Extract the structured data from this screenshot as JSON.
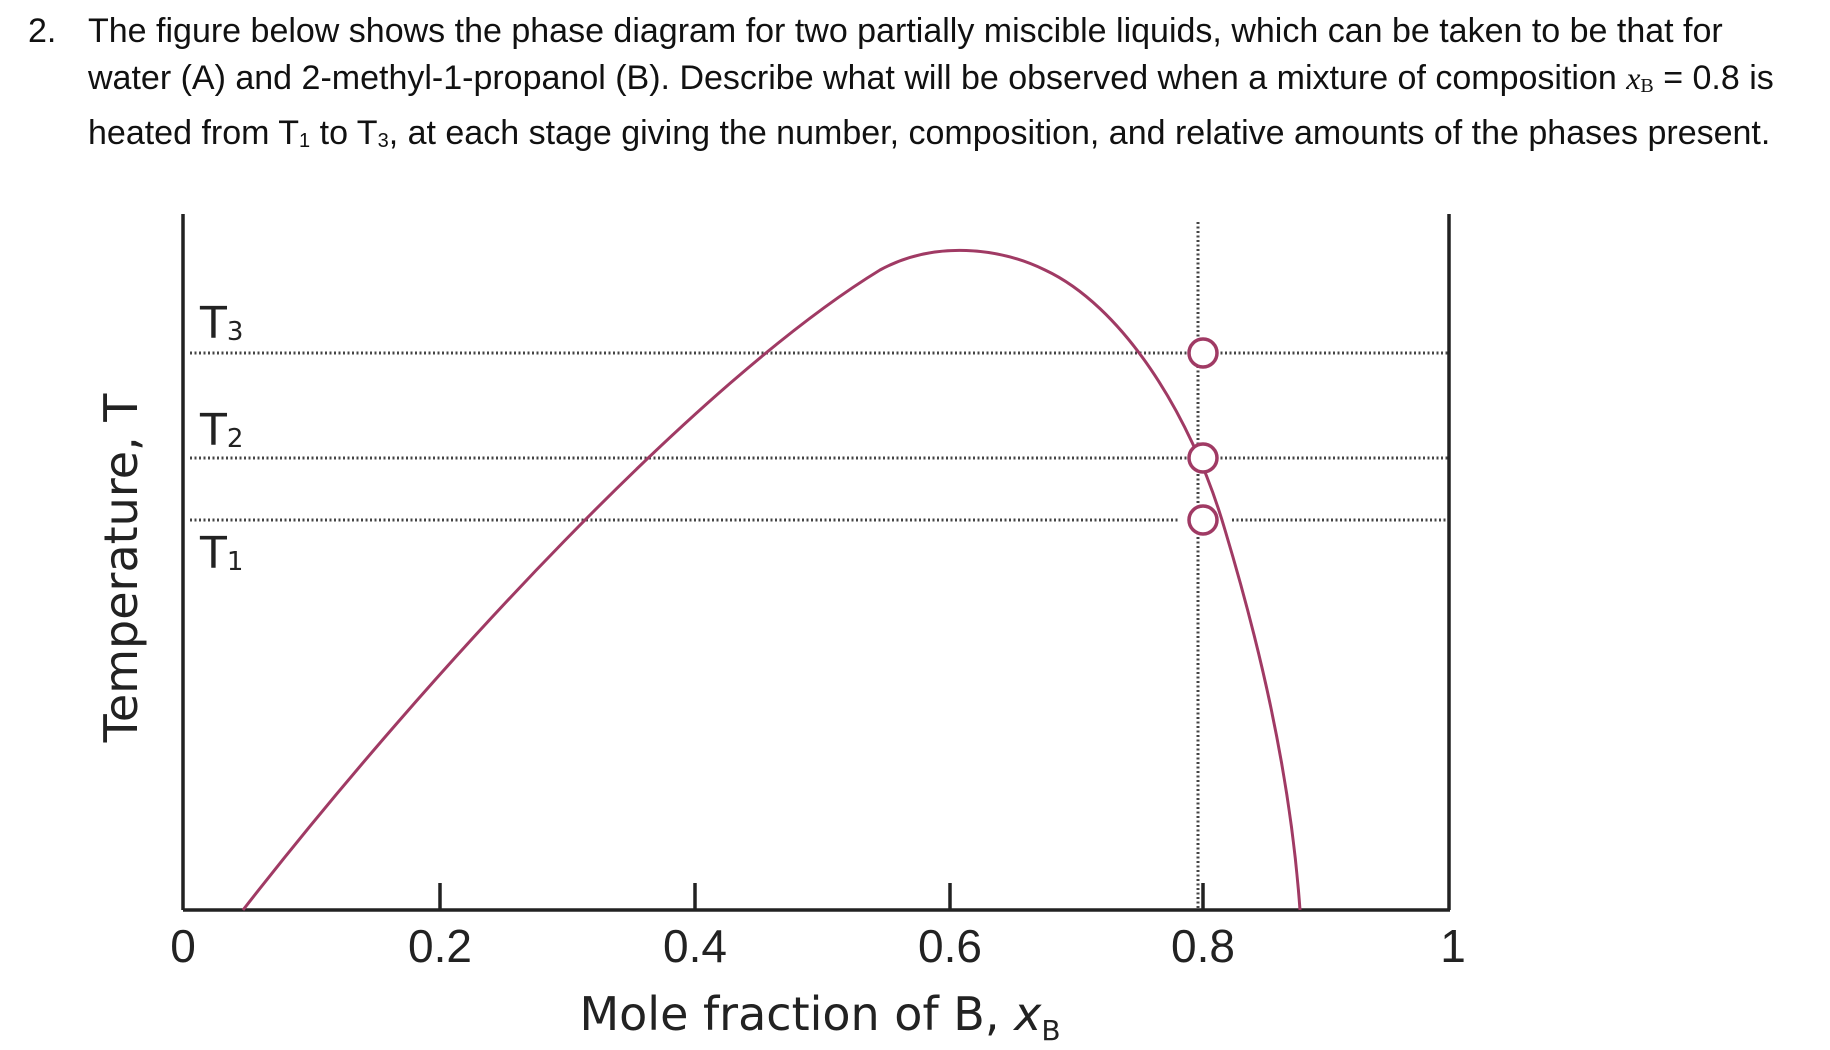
{
  "question": {
    "number": "2.",
    "text_part1": "The figure below shows the phase diagram for two partially miscible liquids, which can be taken to be that for water (A) and 2-methyl-1-propanol (B). Describe what will be observed when a mixture of composition ",
    "var_symbol": "x",
    "var_subscript": "B",
    "text_part2": " = 0.8 is heated from T",
    "t1_sub": "1",
    "text_part3": " to T",
    "t3_sub": "3",
    "text_part4": ", at each stage giving the number, composition, and relative amounts of the phases present."
  },
  "diagram": {
    "y_axis_label": "Temperature, T",
    "x_axis_label": "Mole fraction of B, ",
    "x_axis_symbol": "x",
    "x_axis_subscript": "B",
    "x_ticks": [
      "0",
      "0.2",
      "0.4",
      "0.6",
      "0.8",
      "1"
    ],
    "temperature_lines": [
      {
        "label": "T",
        "sub": "3"
      },
      {
        "label": "T",
        "sub": "2"
      },
      {
        "label": "T",
        "sub": "1"
      }
    ],
    "curve_color": "#a03a64",
    "axis_color": "#222222"
  },
  "chart_data": {
    "type": "line",
    "title": "",
    "xlabel": "Mole fraction of B, xB",
    "ylabel": "Temperature, T",
    "xlim": [
      0,
      1
    ],
    "x_ticks": [
      0,
      0.2,
      0.4,
      0.6,
      0.8,
      1
    ],
    "y_ticks_numeric": false,
    "coexistence_curve": {
      "x": [
        0.05,
        0.2,
        0.33,
        0.46,
        0.58,
        0.625,
        0.7,
        0.76,
        0.8,
        0.835,
        0.86,
        0.875
      ],
      "relative_T": [
        0.0,
        0.33,
        0.6,
        0.85,
        0.98,
        1.0,
        0.96,
        0.85,
        0.7,
        0.5,
        0.22,
        0.0
      ]
    },
    "isotherms": [
      {
        "name": "T3",
        "relative_T": 0.85
      },
      {
        "name": "T2",
        "relative_T": 0.7
      },
      {
        "name": "T1",
        "relative_T": 0.6
      }
    ],
    "marked_points": [
      {
        "x": 0.8,
        "on": "T3"
      },
      {
        "x": 0.8,
        "on": "T2"
      },
      {
        "x": 0.8,
        "on": "T1"
      }
    ],
    "vertical_line_x": 0.8
  }
}
